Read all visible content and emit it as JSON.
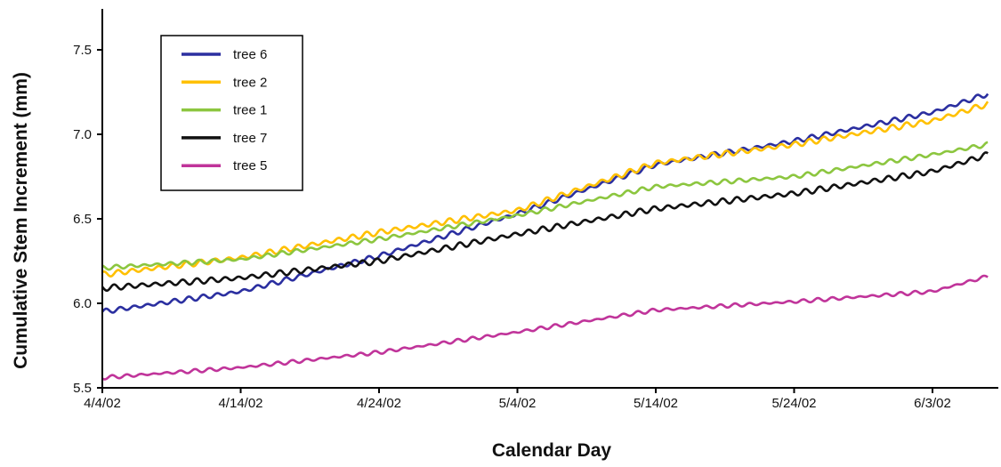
{
  "chart_data": {
    "type": "line",
    "title": "",
    "xlabel": "Calendar Day",
    "ylabel": "Cumulative Stem Increment (mm)",
    "x_tick_labels": [
      "4/4/02",
      "4/14/02",
      "4/24/02",
      "5/4/02",
      "5/14/02",
      "5/24/02",
      "6/3/02"
    ],
    "x_range": [
      "4/4/02",
      "6/7/02"
    ],
    "y_ticks": [
      "5.5",
      "6.0",
      "6.5",
      "7.0",
      "7.5"
    ],
    "ylim": [
      5.5,
      7.75
    ],
    "grid": false,
    "legend_position": "top-left",
    "x": [
      "4/4/02",
      "4/14/02",
      "4/24/02",
      "5/4/02",
      "5/14/02",
      "5/24/02",
      "6/3/02",
      "6/7/02"
    ],
    "series": [
      {
        "name": "tree 6",
        "color": "#2b2fa0",
        "values": [
          5.95,
          6.07,
          6.28,
          6.53,
          6.82,
          6.96,
          7.13,
          7.24
        ]
      },
      {
        "name": "tree 2",
        "color": "#ffc000",
        "values": [
          6.17,
          6.27,
          6.42,
          6.55,
          6.83,
          6.94,
          7.08,
          7.18
        ]
      },
      {
        "name": "tree 1",
        "color": "#8cc63f",
        "values": [
          6.21,
          6.26,
          6.38,
          6.52,
          6.69,
          6.75,
          6.88,
          6.94
        ]
      },
      {
        "name": "tree 7",
        "color": "#111111",
        "values": [
          6.09,
          6.15,
          6.25,
          6.41,
          6.56,
          6.65,
          6.78,
          6.88
        ]
      },
      {
        "name": "tree 5",
        "color": "#c0349a",
        "values": [
          5.56,
          5.62,
          5.71,
          5.83,
          5.96,
          6.01,
          6.07,
          6.16
        ]
      }
    ]
  }
}
